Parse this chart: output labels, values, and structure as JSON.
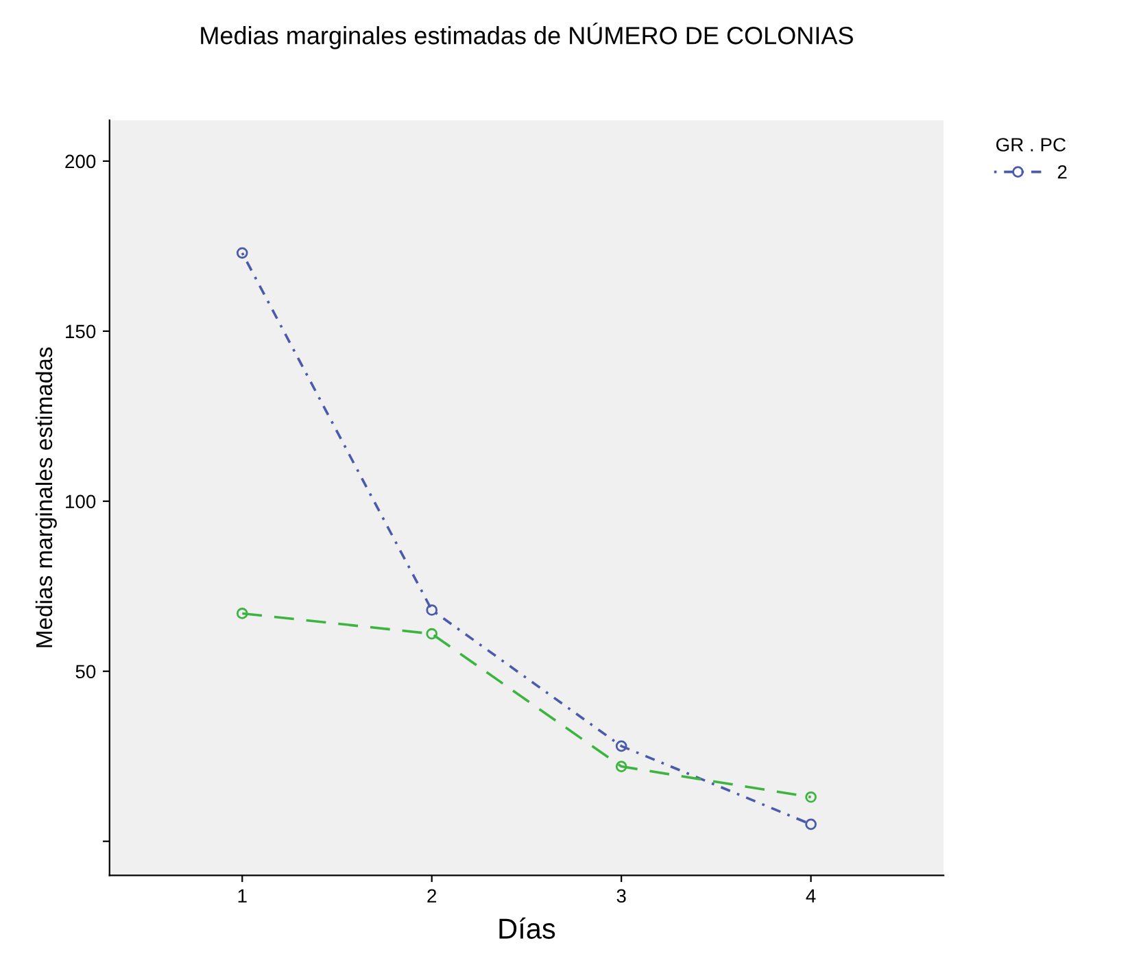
{
  "chart_data": {
    "type": "line",
    "title": "Medias marginales estimadas de NÚMERO DE COLONIAS",
    "xlabel": "Días",
    "ylabel": "Medias marginales estimadas",
    "legend_title": "GR . PC",
    "legend": "top right",
    "categories": [
      "1",
      "2",
      "3",
      "4"
    ],
    "series": [
      {
        "name": "2",
        "color": "#4a5aad",
        "values": [
          173,
          68,
          28,
          5
        ],
        "line_style": "dotted",
        "marker": "circle"
      },
      {
        "color": "#3cb440",
        "values": [
          67,
          61,
          22,
          13
        ],
        "line_style": "dashed",
        "marker": "circle"
      }
    ],
    "ylim": [
      -10,
      212
    ],
    "yticks": [
      {
        "value": 0,
        "label": null
      },
      50,
      100,
      150,
      200
    ],
    "grid": false
  }
}
